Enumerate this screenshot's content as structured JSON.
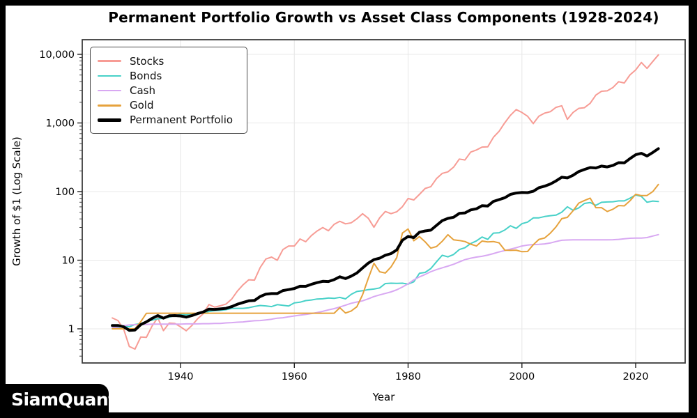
{
  "figure": {
    "title": "Permanent Portfolio Growth vs Asset Class Components (1928-2024)",
    "x_axis_label": "Year",
    "y_axis_label": "Growth of $1 (Log Scale)"
  },
  "branding": {
    "logo_text": "SiamQuant"
  },
  "chart_data": {
    "type": "line",
    "title": "Permanent Portfolio Growth vs Asset Class Components (1928-2024)",
    "xlabel": "Year",
    "ylabel": "Growth of $1 (Log Scale)",
    "y_scale": "log",
    "grid": true,
    "legend_position": "upper left",
    "xlim": [
      1922.7,
      2028.9
    ],
    "ylim": [
      0.32,
      16000
    ],
    "x_ticks": [
      1940,
      1960,
      1980,
      2000,
      2020
    ],
    "y_ticks": [
      {
        "value": 1,
        "label": "1"
      },
      {
        "value": 10,
        "label": "10"
      },
      {
        "value": 100,
        "label": "100"
      },
      {
        "value": 1000,
        "label": "1,000"
      },
      {
        "value": 10000,
        "label": "10,000"
      }
    ],
    "years": [
      1928,
      1929,
      1930,
      1931,
      1932,
      1933,
      1934,
      1935,
      1936,
      1937,
      1938,
      1939,
      1940,
      1941,
      1942,
      1943,
      1944,
      1945,
      1946,
      1947,
      1948,
      1949,
      1950,
      1951,
      1952,
      1953,
      1954,
      1955,
      1956,
      1957,
      1958,
      1959,
      1960,
      1961,
      1962,
      1963,
      1964,
      1965,
      1966,
      1967,
      1968,
      1969,
      1970,
      1971,
      1972,
      1973,
      1974,
      1975,
      1976,
      1977,
      1978,
      1979,
      1980,
      1981,
      1982,
      1983,
      1984,
      1985,
      1986,
      1987,
      1988,
      1989,
      1990,
      1991,
      1992,
      1993,
      1994,
      1995,
      1996,
      1997,
      1998,
      1999,
      2000,
      2001,
      2002,
      2003,
      2004,
      2005,
      2006,
      2007,
      2008,
      2009,
      2010,
      2011,
      2012,
      2013,
      2014,
      2015,
      2016,
      2017,
      2018,
      2019,
      2020,
      2021,
      2022,
      2023,
      2024
    ],
    "series": [
      {
        "name": "Stocks",
        "color": "#F79C95",
        "line_width": 2,
        "values": [
          1.44,
          1.32,
          0.99,
          0.554,
          0.506,
          0.759,
          0.75,
          1.1,
          1.45,
          0.94,
          1.21,
          1.2,
          1.07,
          0.936,
          1.12,
          1.4,
          1.66,
          2.26,
          2.07,
          2.17,
          2.3,
          2.72,
          3.55,
          4.39,
          5.19,
          5.13,
          7.83,
          10.4,
          11.1,
          9.98,
          14.3,
          16.1,
          16.1,
          20.4,
          18.6,
          22.8,
          26.6,
          29.9,
          26.9,
          33.3,
          36.9,
          33.9,
          35.1,
          40.1,
          47.6,
          40.8,
          30.2,
          41.4,
          51.3,
          47.7,
          50.8,
          60.2,
          79.3,
          75.6,
          91.0,
          111,
          118,
          155,
          184,
          194,
          227,
          298,
          289,
          376,
          404,
          445,
          450,
          618,
          758,
          1009,
          1295,
          1566,
          1424,
          1255,
          980,
          1257,
          1392,
          1460,
          1688,
          1780,
          1129,
          1422,
          1633,
          1668,
          1933,
          2554,
          2899,
          2939,
          3285,
          3995,
          3826,
          5020,
          5925,
          7612,
          6239,
          7865,
          9821
        ]
      },
      {
        "name": "Bonds",
        "color": "#48D1C8",
        "line_width": 2,
        "values": [
          1.01,
          1.05,
          1.1,
          1.07,
          1.16,
          1.19,
          1.28,
          1.34,
          1.4,
          1.42,
          1.48,
          1.55,
          1.63,
          1.6,
          1.64,
          1.68,
          1.72,
          1.79,
          1.84,
          1.86,
          1.9,
          1.98,
          1.99,
          1.99,
          2.03,
          2.12,
          2.19,
          2.16,
          2.11,
          2.25,
          2.2,
          2.15,
          2.39,
          2.44,
          2.58,
          2.63,
          2.72,
          2.74,
          2.82,
          2.78,
          2.87,
          2.73,
          3.18,
          3.5,
          3.59,
          3.73,
          3.8,
          3.94,
          4.57,
          4.62,
          4.59,
          4.62,
          4.48,
          4.85,
          6.44,
          6.65,
          7.56,
          9.5,
          11.8,
          11.2,
          12.1,
          14.3,
          15.2,
          17.5,
          19.1,
          21.8,
          20.1,
          24.8,
          25.1,
          27.6,
          31.7,
          29.1,
          34.0,
          35.9,
          41.3,
          41.4,
          43.3,
          44.5,
          45.4,
          50.1,
          60.1,
          53.4,
          57.9,
          67.2,
          69.2,
          62.9,
          69.7,
          70.6,
          71.1,
          73.1,
          73.1,
          80.1,
          89.2,
          85.2,
          70.0,
          72.8,
          71.6
        ]
      },
      {
        "name": "Cash",
        "color": "#D8A8F2",
        "line_width": 2,
        "values": [
          1.03,
          1.06,
          1.11,
          1.14,
          1.15,
          1.16,
          1.16,
          1.17,
          1.17,
          1.17,
          1.17,
          1.17,
          1.17,
          1.18,
          1.18,
          1.18,
          1.19,
          1.19,
          1.2,
          1.2,
          1.22,
          1.23,
          1.25,
          1.26,
          1.29,
          1.31,
          1.32,
          1.35,
          1.38,
          1.43,
          1.45,
          1.5,
          1.54,
          1.58,
          1.62,
          1.67,
          1.73,
          1.8,
          1.89,
          1.97,
          2.08,
          2.21,
          2.36,
          2.46,
          2.56,
          2.74,
          2.95,
          3.12,
          3.28,
          3.45,
          3.7,
          4.07,
          4.53,
          5.17,
          5.72,
          6.21,
          6.8,
          7.31,
          7.75,
          8.2,
          8.74,
          9.45,
          10.2,
          10.7,
          11.1,
          11.4,
          11.9,
          12.5,
          13.2,
          13.8,
          14.5,
          15.2,
          16.1,
          16.6,
          16.9,
          17.0,
          17.3,
          17.8,
          18.7,
          19.5,
          19.7,
          19.8,
          19.8,
          19.8,
          19.8,
          19.8,
          19.8,
          19.8,
          19.9,
          20.1,
          20.5,
          20.9,
          21.0,
          21.0,
          21.4,
          22.5,
          23.6
        ]
      },
      {
        "name": "Gold",
        "color": "#E6A23C",
        "line_width": 2,
        "values": [
          1.0,
          1.0,
          1.0,
          1.0,
          1.0,
          1.27,
          1.68,
          1.69,
          1.69,
          1.69,
          1.69,
          1.69,
          1.69,
          1.69,
          1.69,
          1.69,
          1.69,
          1.69,
          1.69,
          1.69,
          1.69,
          1.69,
          1.69,
          1.69,
          1.69,
          1.69,
          1.69,
          1.69,
          1.69,
          1.69,
          1.69,
          1.69,
          1.69,
          1.69,
          1.69,
          1.69,
          1.69,
          1.69,
          1.69,
          1.69,
          2.03,
          1.7,
          1.82,
          2.1,
          3.14,
          5.43,
          9.02,
          6.79,
          6.51,
          7.98,
          10.9,
          24.8,
          28.5,
          19.2,
          22.1,
          18.5,
          15.0,
          15.8,
          18.9,
          23.5,
          19.8,
          19.4,
          18.7,
          17.1,
          16.1,
          19.0,
          18.5,
          18.7,
          17.9,
          14.0,
          13.9,
          14.0,
          13.3,
          13.4,
          16.8,
          20.1,
          21.1,
          24.8,
          30.6,
          40.3,
          42.1,
          52.6,
          68.0,
          74.1,
          80.2,
          58.3,
          58.3,
          51.3,
          55.4,
          62.5,
          61.9,
          73.3,
          91.3,
          87.4,
          87.7,
          99.8,
          127
        ]
      },
      {
        "name": "Permanent Portfolio",
        "color": "#000000",
        "line_width": 4,
        "values": [
          1.12,
          1.12,
          1.07,
          0.95,
          0.96,
          1.15,
          1.26,
          1.42,
          1.56,
          1.43,
          1.55,
          1.56,
          1.54,
          1.48,
          1.56,
          1.67,
          1.76,
          1.94,
          1.92,
          1.95,
          1.99,
          2.11,
          2.28,
          2.42,
          2.56,
          2.59,
          2.96,
          3.2,
          3.26,
          3.26,
          3.61,
          3.73,
          3.87,
          4.17,
          4.16,
          4.45,
          4.71,
          4.92,
          4.89,
          5.21,
          5.73,
          5.4,
          5.86,
          6.5,
          7.72,
          9.06,
          10.2,
          10.7,
          11.8,
          12.5,
          14.1,
          19.5,
          22.2,
          21.4,
          25.6,
          26.7,
          27.4,
          32.2,
          37.7,
          40.7,
          42.3,
          48.1,
          48.9,
          54.1,
          56.1,
          62.3,
          61.6,
          71.9,
          76.4,
          81.5,
          91.1,
          95.2,
          97.1,
          96.6,
          101,
          114,
          120,
          129,
          143,
          162,
          158,
          173,
          196,
          210,
          224,
          221,
          235,
          229,
          241,
          264,
          262,
          302,
          344,
          361,
          330,
          371,
          422
        ]
      }
    ]
  }
}
